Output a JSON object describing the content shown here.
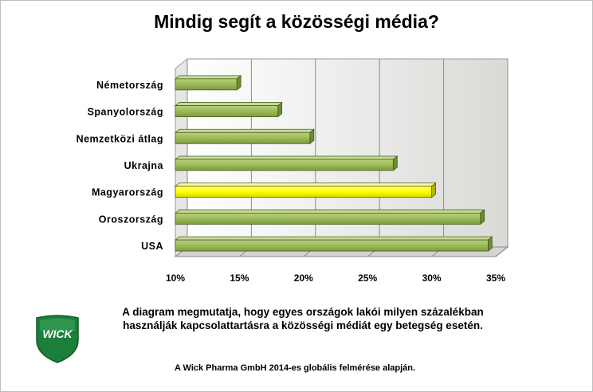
{
  "chart_data": {
    "type": "bar",
    "orientation": "horizontal",
    "title": "Mindig segít a közösségi média?",
    "categories": [
      "Németország",
      "Spanyolország",
      "Nemzetközi átlag",
      "Ukrajna",
      "Magyarország",
      "Oroszország",
      "USA"
    ],
    "values": [
      14.8,
      18,
      20.5,
      27,
      30,
      33.8,
      34.4
    ],
    "xlim": [
      10,
      35
    ],
    "xticks": [
      "10%",
      "15%",
      "20%",
      "25%",
      "30%",
      "35%"
    ],
    "grid": true,
    "colors": {
      "bar": "#9bbb59",
      "highlight": "#ffff00",
      "highlight_category": "Magyarország"
    }
  },
  "caption": "A diagram megmutatja, hogy egyes országok lakói milyen százalékban használják kapcsolattartásra  a közösségi médiát  egy betegség esetén.",
  "source": "A Wick Pharma GmbH 2014-es globális felmérése alapján.",
  "logo": {
    "text": "WICK",
    "icon": "wick-shield-logo",
    "color": "#1b7f3b"
  }
}
